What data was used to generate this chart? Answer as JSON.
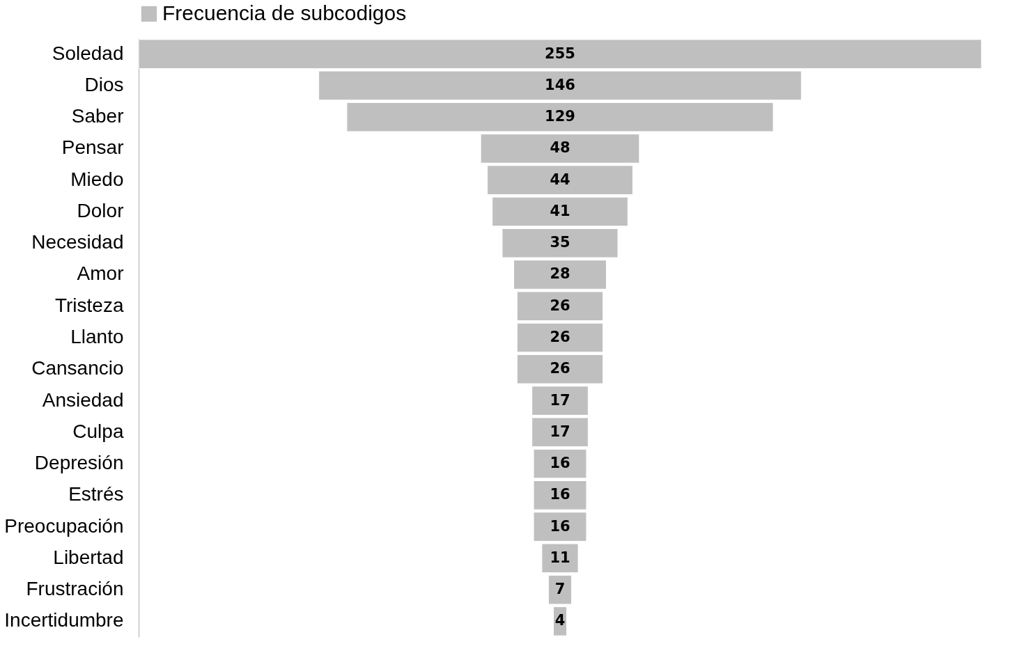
{
  "chart_data": {
    "type": "other",
    "categories": [
      "Soledad",
      "Dios",
      "Saber",
      "Pensar",
      "Miedo",
      "Dolor",
      "Necesidad",
      "Amor",
      "Tristeza",
      "Llanto",
      "Cansancio",
      "Ansiedad",
      "Culpa",
      "Depresión",
      "Estrés",
      "Preocupación",
      "Libertad",
      "Frustración",
      "Incertidumbre"
    ],
    "series": [
      {
        "name": "Frecuencia de subcodigos",
        "color": "#bfbfbf",
        "values": [
          255,
          146,
          129,
          48,
          44,
          41,
          35,
          28,
          26,
          26,
          26,
          17,
          17,
          16,
          16,
          16,
          11,
          7,
          4
        ]
      }
    ],
    "data_labels": true,
    "legend": "top"
  }
}
